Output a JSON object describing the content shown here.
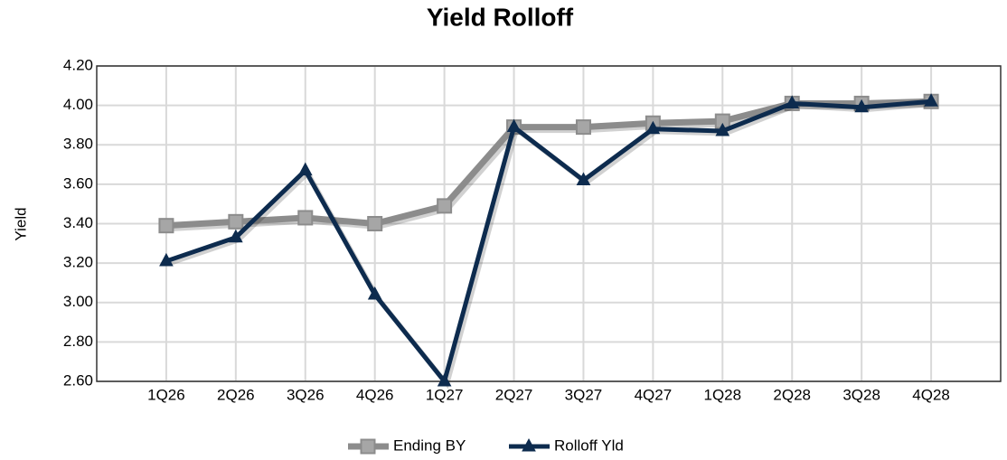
{
  "chart_data": {
    "type": "line",
    "title": "Yield Rolloff",
    "y_label": "Yield",
    "categories": [
      "1Q26",
      "2Q26",
      "3Q26",
      "4Q26",
      "1Q27",
      "2Q27",
      "3Q27",
      "4Q27",
      "1Q28",
      "2Q28",
      "3Q28",
      "4Q28"
    ],
    "series": [
      {
        "name": "Ending BY",
        "color": "#8c8c8c",
        "marker": "square",
        "values": [
          3.39,
          3.41,
          3.43,
          3.4,
          3.49,
          3.89,
          3.89,
          3.91,
          3.92,
          4.01,
          4.01,
          4.02
        ]
      },
      {
        "name": "Rolloff Yld",
        "color": "#0d2b4e",
        "marker": "triangle",
        "values": [
          3.21,
          3.33,
          3.67,
          3.04,
          2.6,
          3.89,
          3.62,
          3.88,
          3.87,
          4.01,
          3.99,
          4.02
        ]
      }
    ],
    "ylim": [
      2.6,
      4.2
    ],
    "yticks": [
      {
        "value": 2.6,
        "label": "2.60"
      },
      {
        "value": 2.8,
        "label": "2.80"
      },
      {
        "value": 3.0,
        "label": "3.00"
      },
      {
        "value": 3.2,
        "label": "3.20"
      },
      {
        "value": 3.4,
        "label": "3.40"
      },
      {
        "value": 3.6,
        "label": "3.60"
      },
      {
        "value": 3.8,
        "label": "3.80"
      },
      {
        "value": 4.0,
        "label": "4.00"
      },
      {
        "value": 4.2,
        "label": "4.20"
      }
    ],
    "grid": true,
    "legend": "bottom"
  }
}
